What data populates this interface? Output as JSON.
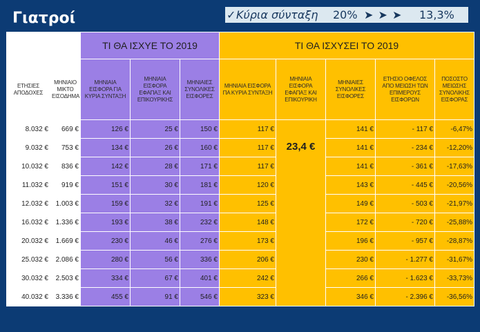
{
  "title": "Γιατροί",
  "rate_box": {
    "check": "✓",
    "label": "Κύρια σύνταξη",
    "old": "20%",
    "arrows": "➤ ➤ ➤",
    "new": "13,3%"
  },
  "headers": {
    "group_old": "ΤΙ ΘΑ ΙΣΧΥΕ ΤΟ 2019",
    "group_new": "ΤΙ ΘΑ ΙΣΧΥΣΕΙ ΤΟ 2019",
    "annual_income": "ΕΤΗΣΙΕΣ ΑΠΟΔΟΧΕΣ",
    "monthly_income": "ΜΗΝΙΑΙΟ ΜΙΚΤΟ ΕΙΣΟΔΗΜΑ",
    "old_main": "ΜΗΝΙΑΙΑ ΕΙΣΦΟΡΑ ΓΙΑ ΚΥΡΙΑ ΣΥΝΤΑΞΗ",
    "old_lump": "ΜΗΝΙΑΙΑ ΕΙΣΦΟΡΑ ΕΦΑΠΑΞ ΚΑΙ ΕΠΙΚΟΥΡΙΚΗΣ",
    "old_total": "ΜΗΝΙΑΙΕΣ ΣΥΝΟΛΙΚΕΣ ΕΙΣΦΟΡΕΣ",
    "new_main": "ΜΗΝΙΑΙΑ ΕΙΣΦΟΡΑ ΠΑ ΚΥΡΙΑ ΣΥΝΤΑΞΗ",
    "new_lump": "ΜΗΝΙΑΙΑ ΕΙΣΦΟΡΑ ΕΦΑΠΑΞ ΚΑΙ ΕΠΙΚΟΥΡΙΚΗ",
    "new_total": "ΜΗΝΙΑΙΕΣ ΣΥΝΟΛΙΚΕΣ ΕΙΣΦΟΡΕΣ",
    "annual_benefit": "ΕΤΗΣΙΟ ΟΦΕΛΟΣ ΑΠΟ ΜΕΙΩΣΗ ΤΩΝ ΕΠΙΜΕΡΟΥΣ ΕΙΣΦΟΡΩΝ",
    "pct_reduction": "ΠΟΣΟΣΤΟ ΜΕΙΩΣΗΣ ΣΥΝΟΛΙΚΗΣ ΕΙΣΦΟΡΑΣ"
  },
  "merged_value": "23,4 €",
  "rows": [
    {
      "annual": "8.032 €",
      "monthly": "669 €",
      "old_main": "126 €",
      "old_lump": "25 €",
      "old_total": "150 €",
      "new_main": "117 €",
      "new_total": "141 €",
      "benefit": "-  117 €",
      "pct": "-6,47%"
    },
    {
      "annual": "9.032 €",
      "monthly": "753 €",
      "old_main": "134 €",
      "old_lump": "26 €",
      "old_total": "160 €",
      "new_main": "117 €",
      "new_total": "141 €",
      "benefit": "-  234 €",
      "pct": "-12,20%"
    },
    {
      "annual": "10.032 €",
      "monthly": "836 €",
      "old_main": "142 €",
      "old_lump": "28 €",
      "old_total": "171 €",
      "new_main": "117 €",
      "new_total": "141 €",
      "benefit": "-  361 €",
      "pct": "-17,63%"
    },
    {
      "annual": "11.032 €",
      "monthly": "919 €",
      "old_main": "151 €",
      "old_lump": "30 €",
      "old_total": "181 €",
      "new_main": "120 €",
      "new_total": "143 €",
      "benefit": "-  445 €",
      "pct": "-20,56%"
    },
    {
      "annual": "12.032 €",
      "monthly": "1.003 €",
      "old_main": "159 €",
      "old_lump": "32 €",
      "old_total": "191 €",
      "new_main": "125 €",
      "new_total": "149 €",
      "benefit": "-  503 €",
      "pct": "-21,97%"
    },
    {
      "annual": "16.032 €",
      "monthly": "1.336 €",
      "old_main": "193 €",
      "old_lump": "38 €",
      "old_total": "232 €",
      "new_main": "148 €",
      "new_total": "172 €",
      "benefit": "-  720 €",
      "pct": "-25,88%"
    },
    {
      "annual": "20.032 €",
      "monthly": "1.669 €",
      "old_main": "230 €",
      "old_lump": "46 €",
      "old_total": "276 €",
      "new_main": "173 €",
      "new_total": "196 €",
      "benefit": "-  957 €",
      "pct": "-28,87%"
    },
    {
      "annual": "25.032 €",
      "monthly": "2.086 €",
      "old_main": "280 €",
      "old_lump": "56 €",
      "old_total": "336 €",
      "new_main": "206 €",
      "new_total": "230 €",
      "benefit": "-  1.277 €",
      "pct": "-31,67%"
    },
    {
      "annual": "30.032 €",
      "monthly": "2.503 €",
      "old_main": "334 €",
      "old_lump": "67 €",
      "old_total": "401 €",
      "new_main": "242 €",
      "new_total": "266 €",
      "benefit": "-  1.623 €",
      "pct": "-33,73%"
    },
    {
      "annual": "40.032 €",
      "monthly": "3.336 €",
      "old_main": "455 €",
      "old_lump": "91 €",
      "old_total": "546 €",
      "new_main": "323 €",
      "new_total": "346 €",
      "benefit": "-  2.396 €",
      "pct": "-36,56%"
    }
  ]
}
